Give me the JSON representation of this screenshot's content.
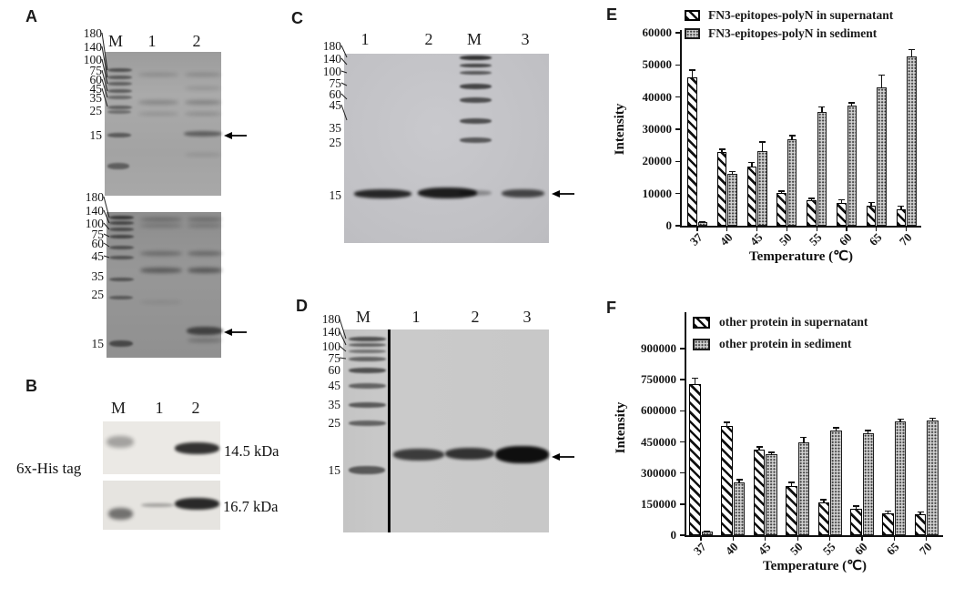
{
  "figure": {
    "panel_a": {
      "label": "A",
      "gel_top": {
        "marker_labels": [
          "180",
          "140",
          "100",
          "75",
          "60",
          "45",
          "35",
          "25",
          "15"
        ],
        "lane_labels": [
          "M",
          "1",
          "2"
        ]
      },
      "gel_bottom": {
        "marker_labels": [
          "180",
          "140",
          "100",
          "75",
          "60",
          "45",
          "35",
          "25",
          "15"
        ]
      }
    },
    "panel_b": {
      "label": "B",
      "tag_label": "6x-His tag",
      "lane_labels": [
        "M",
        "1",
        "2"
      ],
      "blots": [
        {
          "size_label": "14.5 kDa"
        },
        {
          "size_label": "16.7 kDa"
        }
      ]
    },
    "panel_c": {
      "label": "C",
      "marker_labels": [
        "180",
        "140",
        "100",
        "75",
        "60",
        "45",
        "35",
        "25",
        "15"
      ],
      "lane_labels": [
        "1",
        "2",
        "M",
        "3"
      ]
    },
    "panel_d": {
      "label": "D",
      "marker_labels": [
        "180",
        "140",
        "100",
        "75",
        "60",
        "45",
        "35",
        "25",
        "15"
      ],
      "lane_labels": [
        "M",
        "1",
        "2",
        "3"
      ]
    },
    "panel_e": {
      "label": "E"
    },
    "panel_f": {
      "label": "F"
    }
  },
  "chart_data": [
    {
      "id": "E",
      "type": "bar",
      "title": "",
      "xlabel": "Temperature (℃)",
      "ylabel": "Intensity",
      "ylim": [
        0,
        60000
      ],
      "ytick_step": 10000,
      "ytick_labels": [
        "0",
        "10000",
        "20000",
        "30000",
        "40000",
        "50000",
        "60000"
      ],
      "grid": false,
      "legend_position": "top-left",
      "categories": [
        "37",
        "40",
        "45",
        "50",
        "55",
        "60",
        "65",
        "70"
      ],
      "series": [
        {
          "name": "FN3-epitopes-polyN in supernatant",
          "pattern": "diagonal-hatch",
          "values": [
            46000,
            22800,
            18500,
            10200,
            8000,
            7200,
            6100,
            5200
          ],
          "errors": [
            2400,
            1000,
            1200,
            500,
            500,
            900,
            1100,
            800
          ]
        },
        {
          "name": "FN3-epitopes-polyN in sediment",
          "pattern": "dot-grid",
          "values": [
            1100,
            16200,
            23200,
            26900,
            35500,
            37400,
            43000,
            52600
          ],
          "errors": [
            200,
            700,
            2800,
            1100,
            1400,
            800,
            3900,
            2200
          ]
        }
      ]
    },
    {
      "id": "F",
      "type": "bar",
      "title": "",
      "xlabel": "Temperature (℃)",
      "ylabel": "Intensity",
      "ylim": [
        0,
        900000
      ],
      "ytick_step": 150000,
      "ytick_labels": [
        "0",
        "150000",
        "300000",
        "450000",
        "600000",
        "750000",
        "900000"
      ],
      "grid": false,
      "legend_position": "top-left",
      "categories": [
        "37",
        "40",
        "45",
        "50",
        "55",
        "60",
        "65",
        "70"
      ],
      "series": [
        {
          "name": "other protein in supernatant",
          "pattern": "diagonal-hatch",
          "values": [
            728000,
            527000,
            412000,
            238000,
            160000,
            127000,
            105000,
            99000
          ],
          "errors": [
            30000,
            17000,
            14000,
            17000,
            12000,
            14000,
            11000,
            13000
          ]
        },
        {
          "name": "other protein in sediment",
          "pattern": "dot-grid",
          "values": [
            16000,
            256000,
            391000,
            449000,
            504000,
            491000,
            547000,
            551000
          ],
          "errors": [
            3000,
            11000,
            8000,
            22000,
            14000,
            14000,
            14000,
            12000
          ]
        }
      ]
    }
  ]
}
